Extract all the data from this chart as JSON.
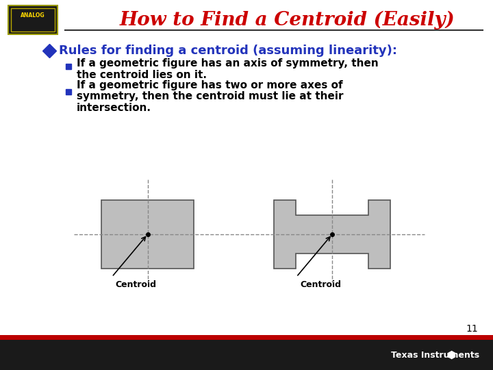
{
  "title": "How to Find a Centroid (Easily)",
  "title_color": "#CC0000",
  "title_fontsize": 20,
  "bullet_color": "#2233BB",
  "bullet_text": "Rules for finding a centroid (assuming linearity):",
  "bullet_fontsize": 13,
  "sub_bullet1_line1": "If a geometric figure has an axis of symmetry, then",
  "sub_bullet1_line2": "the centroid lies on it.",
  "sub_bullet2_line1": "If a geometric figure has two or more axes of",
  "sub_bullet2_line2": "symmetry, then the centroid must lie at their",
  "sub_bullet2_line3": "intersection.",
  "sub_bullet_fontsize": 11,
  "sub_bullet_color": "#000000",
  "sub_bullet_marker_color": "#2233BB",
  "shape_fill": "#BEBEBE",
  "shape_edge": "#555555",
  "dashed_line_color": "#888888",
  "arrow_color": "#000000",
  "centroid_label_fontsize": 9,
  "page_number": "11",
  "bg_color": "#FFFFFF",
  "footer_dark": "#1A1A1A",
  "footer_red": "#BB0000",
  "ti_text_color": "#FFFFFF",
  "underline_color": "#333333"
}
